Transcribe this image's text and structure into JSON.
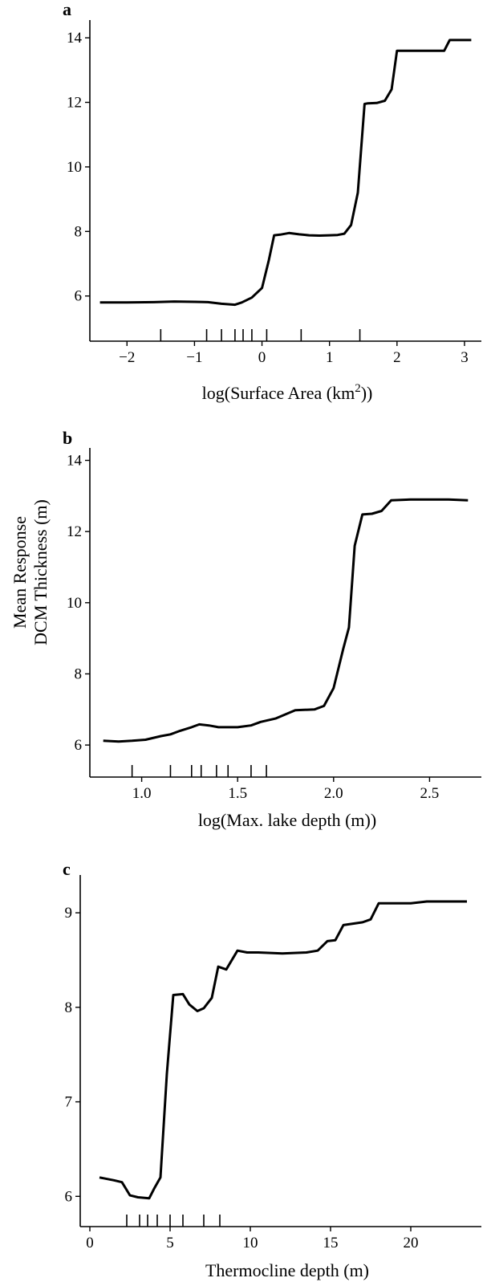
{
  "shared_ylabel": [
    "Mean Response",
    "DCM Thickness (m)"
  ],
  "chart_data": [
    {
      "type": "line",
      "panel": "a",
      "xlabel": "log(Surface Area (km",
      "xlabel_sup": "2",
      "xlabel_tail": "))",
      "xlim": [
        -2.55,
        3.25
      ],
      "ylim": [
        4.6,
        14.55
      ],
      "xticks": [
        -2,
        -1,
        0,
        1,
        2,
        3
      ],
      "xtick_labels": [
        "−2",
        "−1",
        "0",
        "1",
        "2",
        "3"
      ],
      "yticks": [
        6,
        8,
        10,
        12,
        14
      ],
      "rug": [
        -1.5,
        -0.82,
        -0.6,
        -0.4,
        -0.28,
        -0.15,
        0.07,
        0.58,
        1.45
      ],
      "x": [
        -2.4,
        -2.0,
        -1.6,
        -1.3,
        -1.0,
        -0.8,
        -0.6,
        -0.4,
        -0.3,
        -0.15,
        0.0,
        0.1,
        0.18,
        0.27,
        0.4,
        0.55,
        0.7,
        0.85,
        1.0,
        1.12,
        1.22,
        1.32,
        1.42,
        1.52,
        1.57,
        1.7,
        1.82,
        1.92,
        2.0,
        2.1,
        2.3,
        2.55,
        2.7,
        2.78,
        2.9,
        3.1
      ],
      "y": [
        5.8,
        5.8,
        5.81,
        5.83,
        5.82,
        5.81,
        5.76,
        5.73,
        5.8,
        5.95,
        6.25,
        7.1,
        7.88,
        7.9,
        7.95,
        7.91,
        7.88,
        7.87,
        7.88,
        7.89,
        7.93,
        8.2,
        9.2,
        11.95,
        11.97,
        11.98,
        12.05,
        12.4,
        13.6,
        13.6,
        13.6,
        13.6,
        13.6,
        13.93,
        13.93,
        13.93
      ]
    },
    {
      "type": "line",
      "panel": "b",
      "xlabel": "log(Max. lake depth (m))",
      "xlim": [
        0.73,
        2.77
      ],
      "ylim": [
        5.1,
        14.35
      ],
      "xticks": [
        1.0,
        1.5,
        2.0,
        2.5
      ],
      "xtick_labels": [
        "1.0",
        "1.5",
        "2.0",
        "2.5"
      ],
      "yticks": [
        6,
        8,
        10,
        12,
        14
      ],
      "rug": [
        0.95,
        1.15,
        1.26,
        1.31,
        1.39,
        1.45,
        1.57,
        1.65
      ],
      "x": [
        0.8,
        0.88,
        0.95,
        1.02,
        1.1,
        1.15,
        1.2,
        1.26,
        1.3,
        1.35,
        1.4,
        1.5,
        1.57,
        1.62,
        1.7,
        1.8,
        1.9,
        1.95,
        2.0,
        2.05,
        2.08,
        2.11,
        2.15,
        2.2,
        2.25,
        2.3,
        2.4,
        2.6,
        2.7
      ],
      "y": [
        6.12,
        6.1,
        6.12,
        6.15,
        6.25,
        6.3,
        6.4,
        6.5,
        6.58,
        6.55,
        6.5,
        6.5,
        6.55,
        6.65,
        6.75,
        6.98,
        7.0,
        7.1,
        7.6,
        8.7,
        9.3,
        11.6,
        12.48,
        12.5,
        12.58,
        12.88,
        12.9,
        12.9,
        12.88
      ]
    },
    {
      "type": "line",
      "panel": "c",
      "xlabel": "Thermocline depth (m)",
      "xlim": [
        -0.6,
        24.4
      ],
      "ylim": [
        5.68,
        9.4
      ],
      "xticks": [
        0,
        5,
        10,
        15,
        20
      ],
      "xtick_labels": [
        "0",
        "5",
        "10",
        "15",
        "20"
      ],
      "yticks": [
        6,
        7,
        8,
        9
      ],
      "rug": [
        2.3,
        3.1,
        3.6,
        4.2,
        5.0,
        5.8,
        7.1,
        8.1
      ],
      "x": [
        0.6,
        1.5,
        2.0,
        2.5,
        3.0,
        3.7,
        4.0,
        4.4,
        4.8,
        5.2,
        5.8,
        6.2,
        6.7,
        7.1,
        7.6,
        8.0,
        8.5,
        9.2,
        9.8,
        10.5,
        12.0,
        13.5,
        14.2,
        14.8,
        15.3,
        15.8,
        17.0,
        17.5,
        18.0,
        20.0,
        21.0,
        23.5
      ],
      "y": [
        6.2,
        6.17,
        6.15,
        6.01,
        5.99,
        5.98,
        6.08,
        6.2,
        7.3,
        8.13,
        8.14,
        8.03,
        7.96,
        7.99,
        8.1,
        8.43,
        8.4,
        8.6,
        8.58,
        8.58,
        8.57,
        8.58,
        8.6,
        8.7,
        8.71,
        8.87,
        8.9,
        8.93,
        9.1,
        9.1,
        9.12,
        9.12
      ]
    }
  ]
}
